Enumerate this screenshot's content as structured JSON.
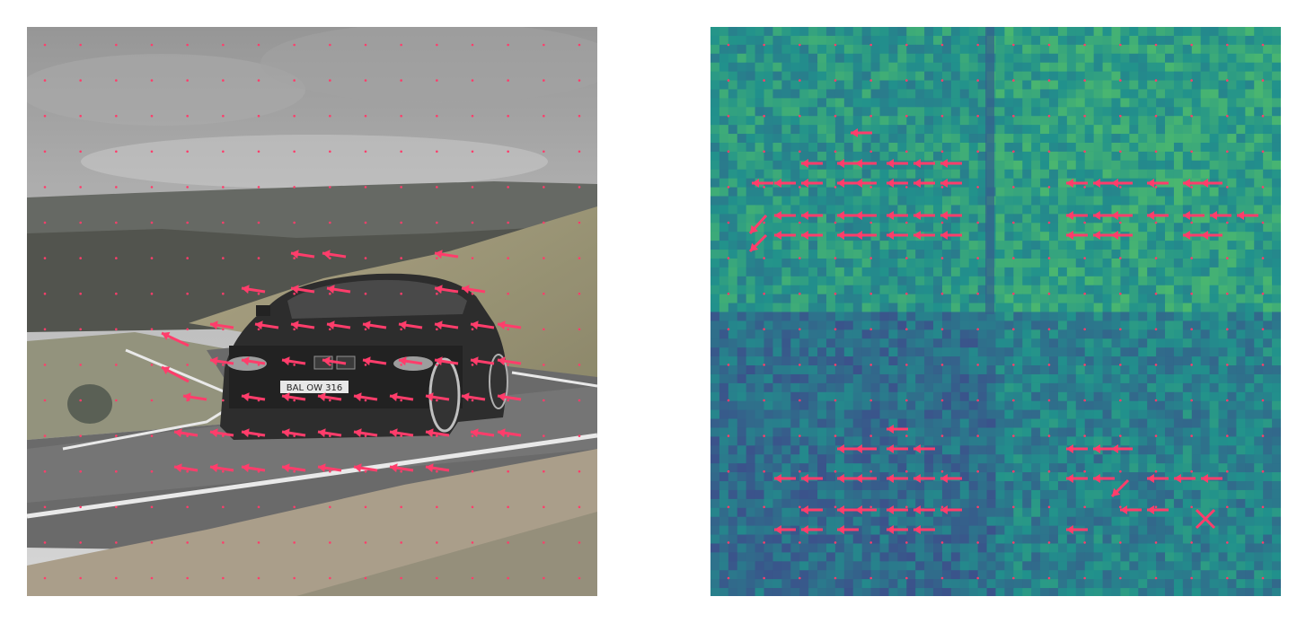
{
  "figure": {
    "left_panel": {
      "content": "photo",
      "license_plate_text": "BAL OW 316"
    },
    "right_panel": {
      "content": "heatmap",
      "colormap": "viridis",
      "cells_per_side": 64
    },
    "colors": {
      "arrow": "#ff3d6b",
      "grid_dot": "#ff3d6b",
      "cross_marker": "#ff3d6b"
    },
    "grid_dots": {
      "per_side": 16
    }
  }
}
